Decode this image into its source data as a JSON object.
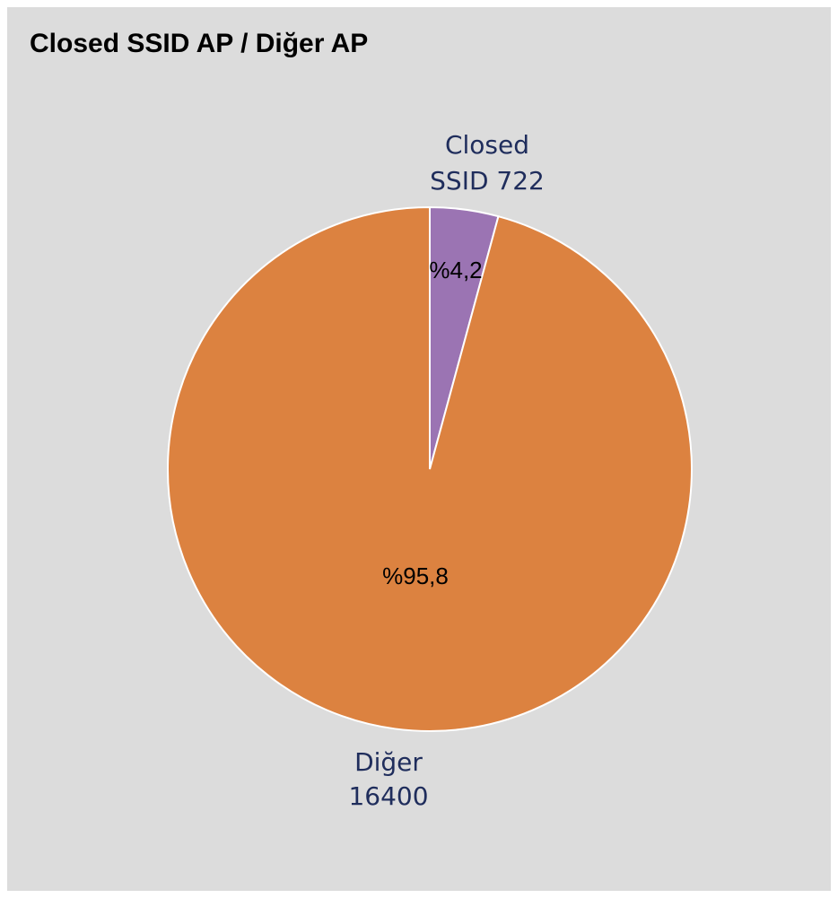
{
  "chart_data": {
    "type": "pie",
    "title": "Closed SSID AP / Diğer AP",
    "slices": [
      {
        "category": "Closed SSID",
        "value": 722,
        "value_text": "722",
        "percent_text": "%4,2",
        "color": "#9b74b3"
      },
      {
        "category": "Diğer",
        "value": 16400,
        "value_text": "16400",
        "percent_text": "%95,8",
        "color": "#dc8240"
      }
    ],
    "start_angle": "12 o'clock",
    "direction": "clockwise",
    "slice_border_color": "#ffffff",
    "label_color": "#1f2d5c",
    "background_color": "#dcdcdc",
    "legend": "none"
  }
}
